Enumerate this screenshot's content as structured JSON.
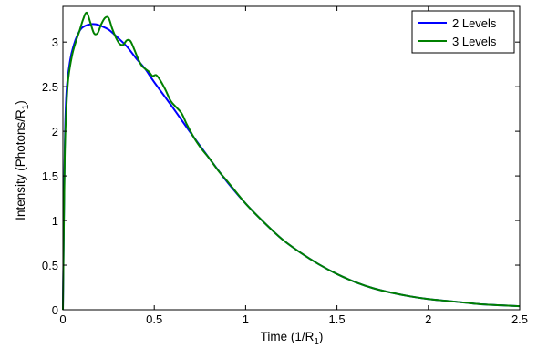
{
  "chart_data": {
    "type": "line",
    "title": "",
    "xlabel": {
      "text": "Time (1/R",
      "sub": "1",
      "close": ")"
    },
    "ylabel": {
      "text": "Intensity (Photons/R",
      "sub": "1",
      "close": ")"
    },
    "xlim": [
      0,
      2.5
    ],
    "ylim": [
      0,
      3.4
    ],
    "xticks": [
      0,
      0.5,
      1,
      1.5,
      2,
      2.5
    ],
    "xtick_labels": [
      "0",
      "0.5",
      "1",
      "1.5",
      "2",
      "2.5"
    ],
    "yticks": [
      0,
      0.5,
      1,
      1.5,
      2,
      2.5,
      3
    ],
    "ytick_labels": [
      "0",
      "0.5",
      "1",
      "1.5",
      "2",
      "2.5",
      "3"
    ],
    "grid": false,
    "legend_position": "top-right",
    "series": [
      {
        "name": "2 Levels",
        "color": "#0000ff",
        "x": [
          0,
          0.01,
          0.02,
          0.04,
          0.06,
          0.08,
          0.1,
          0.12,
          0.15,
          0.18,
          0.21,
          0.25,
          0.3,
          0.35,
          0.4,
          0.45,
          0.5,
          0.6,
          0.7,
          0.8,
          0.9,
          1.0,
          1.1,
          1.2,
          1.3,
          1.4,
          1.5,
          1.6,
          1.7,
          1.8,
          1.9,
          2.0,
          2.1,
          2.2,
          2.3,
          2.4,
          2.5
        ],
        "y": [
          0,
          1.8,
          2.45,
          2.8,
          2.97,
          3.08,
          3.15,
          3.18,
          3.2,
          3.2,
          3.18,
          3.14,
          3.05,
          2.95,
          2.82,
          2.7,
          2.55,
          2.27,
          1.98,
          1.7,
          1.43,
          1.19,
          0.98,
          0.79,
          0.64,
          0.51,
          0.4,
          0.31,
          0.24,
          0.19,
          0.15,
          0.12,
          0.1,
          0.08,
          0.06,
          0.05,
          0.04
        ]
      },
      {
        "name": "3 Levels",
        "color": "#008000",
        "x": [
          0,
          0.01,
          0.02,
          0.03,
          0.05,
          0.07,
          0.09,
          0.11,
          0.13,
          0.15,
          0.17,
          0.19,
          0.21,
          0.23,
          0.25,
          0.27,
          0.29,
          0.31,
          0.33,
          0.35,
          0.37,
          0.39,
          0.41,
          0.43,
          0.45,
          0.47,
          0.49,
          0.51,
          0.53,
          0.56,
          0.59,
          0.62,
          0.65,
          0.68,
          0.72,
          0.76,
          0.8,
          0.85,
          0.9,
          1.0,
          1.1,
          1.2,
          1.3,
          1.4,
          1.5,
          1.6,
          1.7,
          1.8,
          1.9,
          2.0,
          2.1,
          2.2,
          2.3,
          2.4,
          2.5
        ],
        "y": [
          0,
          1.7,
          2.3,
          2.6,
          2.85,
          3.0,
          3.12,
          3.25,
          3.33,
          3.22,
          3.1,
          3.1,
          3.2,
          3.27,
          3.27,
          3.15,
          3.05,
          2.98,
          2.97,
          3.02,
          3.01,
          2.92,
          2.82,
          2.74,
          2.7,
          2.67,
          2.62,
          2.63,
          2.58,
          2.47,
          2.34,
          2.27,
          2.2,
          2.07,
          1.92,
          1.8,
          1.7,
          1.56,
          1.44,
          1.19,
          0.98,
          0.79,
          0.64,
          0.51,
          0.4,
          0.31,
          0.24,
          0.19,
          0.15,
          0.12,
          0.1,
          0.08,
          0.06,
          0.05,
          0.04
        ]
      }
    ]
  }
}
